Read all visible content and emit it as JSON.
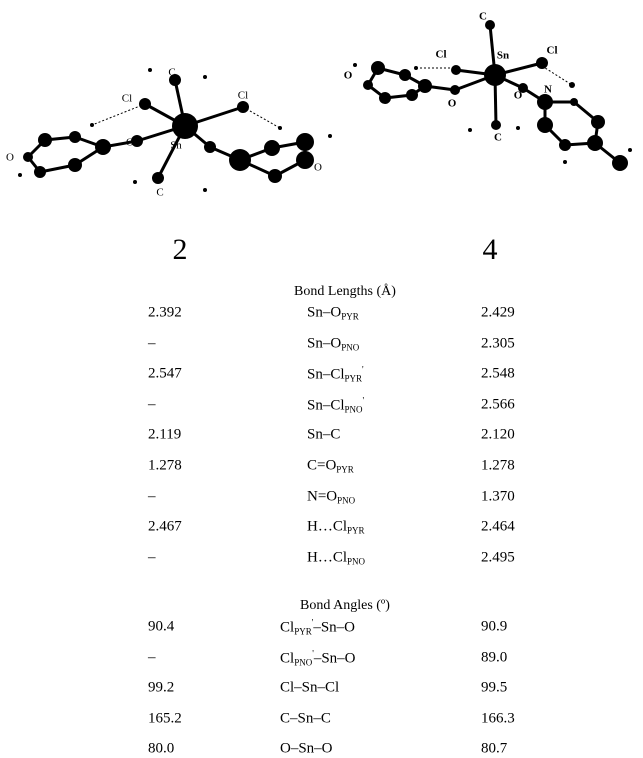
{
  "figure": {
    "structures": [
      {
        "label": "2",
        "atoms": [
          "Cl",
          "C",
          "Cl",
          "O",
          "Sn",
          "O",
          "O",
          "C"
        ]
      },
      {
        "label": "4",
        "atoms": [
          "C",
          "Sn",
          "Cl",
          "Cl",
          "O",
          "O",
          "O",
          "N",
          "C"
        ]
      }
    ]
  },
  "table": {
    "sections": [
      {
        "title": "Bond Lengths (Å)",
        "rows": [
          {
            "c2": "2.392",
            "bond": {
              "main": "Sn–O",
              "sub": "PYR"
            },
            "c4": "2.429"
          },
          {
            "c2": "–",
            "bond": {
              "main": "Sn–O",
              "sub": "PNO"
            },
            "c4": "2.305"
          },
          {
            "c2": "2.547",
            "bond": {
              "main": "Sn–Cl",
              "sub": "PYR",
              "sup": "'"
            },
            "c4": "2.548"
          },
          {
            "c2": "–",
            "bond": {
              "main": "Sn–Cl",
              "sub": "PNO",
              "sup": "'"
            },
            "c4": "2.566"
          },
          {
            "c2": "2.119",
            "bond": {
              "main": "Sn–C"
            },
            "c4": "2.120"
          },
          {
            "c2": "1.278",
            "bond": {
              "main": "C=O",
              "sub": "PYR"
            },
            "c4": "1.278"
          },
          {
            "c2": "–",
            "bond": {
              "main": "N=O",
              "sub": "PNO"
            },
            "c4": "1.370"
          },
          {
            "c2": "2.467",
            "bond": {
              "main": "H…Cl",
              "sub": "PYR"
            },
            "c4": "2.464"
          },
          {
            "c2": "–",
            "bond": {
              "main": "H…Cl",
              "sub": "PNO"
            },
            "c4": "2.495"
          }
        ]
      },
      {
        "title": "Bond Angles (º)",
        "rows": [
          {
            "c2": "90.4",
            "bond": {
              "main": "Cl",
              "sub": "PYR",
              "sup": "'",
              "tail": "–Sn–O"
            },
            "c4": "90.9"
          },
          {
            "c2": "–",
            "bond": {
              "main": "Cl",
              "sub": "PNO",
              "sup": "'",
              "tail": "–Sn–O"
            },
            "c4": "89.0"
          },
          {
            "c2": "99.2",
            "bond": {
              "main": "Cl–Sn–Cl"
            },
            "c4": "99.5"
          },
          {
            "c2": "165.2",
            "bond": {
              "main": "C–Sn–C"
            },
            "c4": "166.3"
          },
          {
            "c2": "80.0",
            "bond": {
              "main": "O–Sn–O"
            },
            "c4": "80.7"
          }
        ]
      }
    ]
  }
}
